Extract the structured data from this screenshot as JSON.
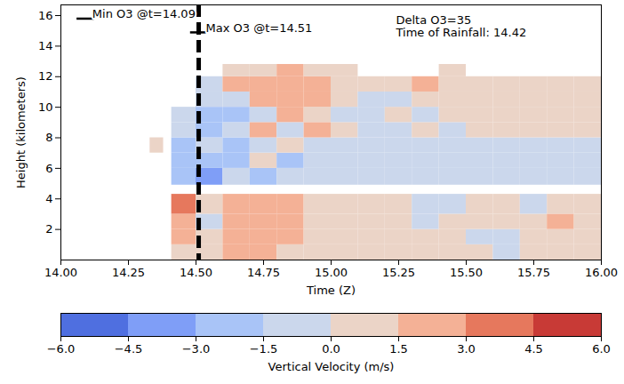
{
  "chart_data": {
    "type": "heatmap",
    "xlabel": "Time (Z)",
    "ylabel": "Height (kilometers)",
    "xlim": [
      14,
      16
    ],
    "ylim": [
      0,
      16.7
    ],
    "xticks": [
      {
        "value": 14,
        "label": "14.00"
      },
      {
        "value": 14.25,
        "label": "14.25"
      },
      {
        "value": 14.5,
        "label": "14.50"
      },
      {
        "value": 14.75,
        "label": "14.75"
      },
      {
        "value": 15,
        "label": "15.00"
      },
      {
        "value": 15.25,
        "label": "15.25"
      },
      {
        "value": 15.5,
        "label": "15.50"
      },
      {
        "value": 15.75,
        "label": "15.75"
      },
      {
        "value": 16,
        "label": "16.00"
      }
    ],
    "yticks": [
      2,
      4,
      6,
      8,
      10,
      12,
      14,
      16
    ],
    "grid": false,
    "x_edges": [
      14.33,
      14.38,
      14.41,
      14.5,
      14.6,
      14.7,
      14.8,
      14.9,
      15.0,
      15.1,
      15.2,
      15.3,
      15.4,
      15.5,
      15.6,
      15.7,
      15.8,
      15.9,
      16.0
    ],
    "y_edges": [
      0,
      1,
      2,
      3,
      4.3,
      4.9,
      6,
      7,
      8,
      9,
      10,
      11,
      12,
      12.8
    ],
    "cells": [
      [
        null,
        null,
        0.8,
        1.2,
        2.0,
        1.8,
        1.0,
        0.8,
        0.8,
        1.0,
        0.7,
        0.6,
        0.5,
        0.4,
        -0.4,
        0.5,
        0.6,
        0.4
      ],
      [
        null,
        null,
        1.5,
        1.0,
        2.2,
        2.0,
        1.6,
        1.2,
        1.0,
        1.2,
        0.8,
        0.7,
        0.5,
        -0.5,
        -0.3,
        0.6,
        0.5,
        0.8
      ],
      [
        null,
        null,
        2.5,
        -0.8,
        2.4,
        2.0,
        1.7,
        1.4,
        1.2,
        1.0,
        0.8,
        -0.5,
        0.6,
        0.4,
        0.5,
        0.7,
        1.6,
        0.9
      ],
      [
        null,
        null,
        3.5,
        1.0,
        2.0,
        2.3,
        1.6,
        1.3,
        1.0,
        0.6,
        0.5,
        -0.8,
        -0.6,
        0.4,
        0.3,
        -0.4,
        0.5,
        0.6
      ],
      [
        null,
        null,
        null,
        null,
        null,
        null,
        null,
        null,
        null,
        null,
        null,
        null,
        null,
        null,
        null,
        null,
        null,
        null
      ],
      [
        null,
        null,
        -2.0,
        -3.2,
        -1.0,
        -2.0,
        -1.2,
        -0.8,
        -1.0,
        -0.6,
        -0.5,
        -0.4,
        -0.5,
        -0.6,
        -0.3,
        -0.7,
        -0.4,
        -0.3
      ],
      [
        null,
        null,
        -2.5,
        -2.2,
        -1.8,
        0.6,
        -1.6,
        -0.7,
        -1.2,
        -0.8,
        -0.4,
        -0.6,
        -0.5,
        -0.4,
        -0.6,
        -0.5,
        -0.3,
        -0.4
      ],
      [
        0.5,
        null,
        -2.0,
        -1.0,
        -2.4,
        -1.0,
        0.8,
        -1.0,
        -0.6,
        -1.4,
        -0.5,
        -0.5,
        -0.6,
        -0.3,
        -0.5,
        -0.6,
        -0.4,
        -0.5
      ],
      [
        null,
        null,
        -1.2,
        -2.0,
        -0.8,
        1.8,
        -0.6,
        1.6,
        0.8,
        -0.5,
        -0.4,
        0.3,
        -0.4,
        0.5,
        0.4,
        0.6,
        0.8,
        0.7
      ],
      [
        null,
        null,
        -0.8,
        -1.6,
        -1.8,
        -0.7,
        2.0,
        1.2,
        -0.6,
        -0.5,
        0.4,
        -0.3,
        0.6,
        0.8,
        1.0,
        0.9,
        0.6,
        0.7
      ],
      [
        null,
        null,
        null,
        -1.0,
        -1.4,
        1.6,
        2.2,
        1.5,
        0.6,
        -0.4,
        -0.4,
        1.0,
        0.8,
        0.7,
        1.2,
        0.9,
        0.8,
        0.6
      ],
      [
        null,
        null,
        null,
        -0.6,
        1.8,
        2.0,
        2.4,
        1.8,
        1.0,
        0.4,
        0.8,
        1.6,
        1.2,
        0.8,
        0.7,
        0.6,
        1.0,
        0.8
      ],
      [
        null,
        null,
        null,
        null,
        0.8,
        1.2,
        1.6,
        1.0,
        0.6,
        null,
        null,
        null,
        0.5,
        null,
        null,
        null,
        null,
        null
      ]
    ],
    "markers": [
      {
        "label": "Min O3 @t=14.09",
        "x": 14.09,
        "y": 15.8,
        "marker": "hline",
        "color": "#000000"
      },
      {
        "label": "Max O3 @t=14.51",
        "x": 14.51,
        "y": 14.9,
        "marker": "hline",
        "color": "#000000"
      }
    ],
    "vertical_line": {
      "x": 14.51,
      "line_style": "dashed",
      "color": "#000000"
    },
    "annotations": [
      "Delta O3=35",
      "Time of Rainfall: 14.42"
    ],
    "colorbar": {
      "label": "Vertical Velocity (m/s)",
      "range": [
        -6,
        6
      ],
      "ticks": [
        {
          "value": -6,
          "label": "−6.0"
        },
        {
          "value": -4.5,
          "label": "−4.5"
        },
        {
          "value": -3,
          "label": "−3.0"
        },
        {
          "value": -1.5,
          "label": "−1.5"
        },
        {
          "value": 0,
          "label": "0.0"
        },
        {
          "value": 1.5,
          "label": "1.5"
        },
        {
          "value": 3,
          "label": "3.0"
        },
        {
          "value": 4.5,
          "label": "4.5"
        },
        {
          "value": 6,
          "label": "6.0"
        }
      ],
      "colors": [
        "#4f6fe0",
        "#7f9ef7",
        "#a9c4f7",
        "#cbd7ec",
        "#ebd4c7",
        "#f4b196",
        "#e6785d",
        "#c83a36"
      ]
    }
  }
}
